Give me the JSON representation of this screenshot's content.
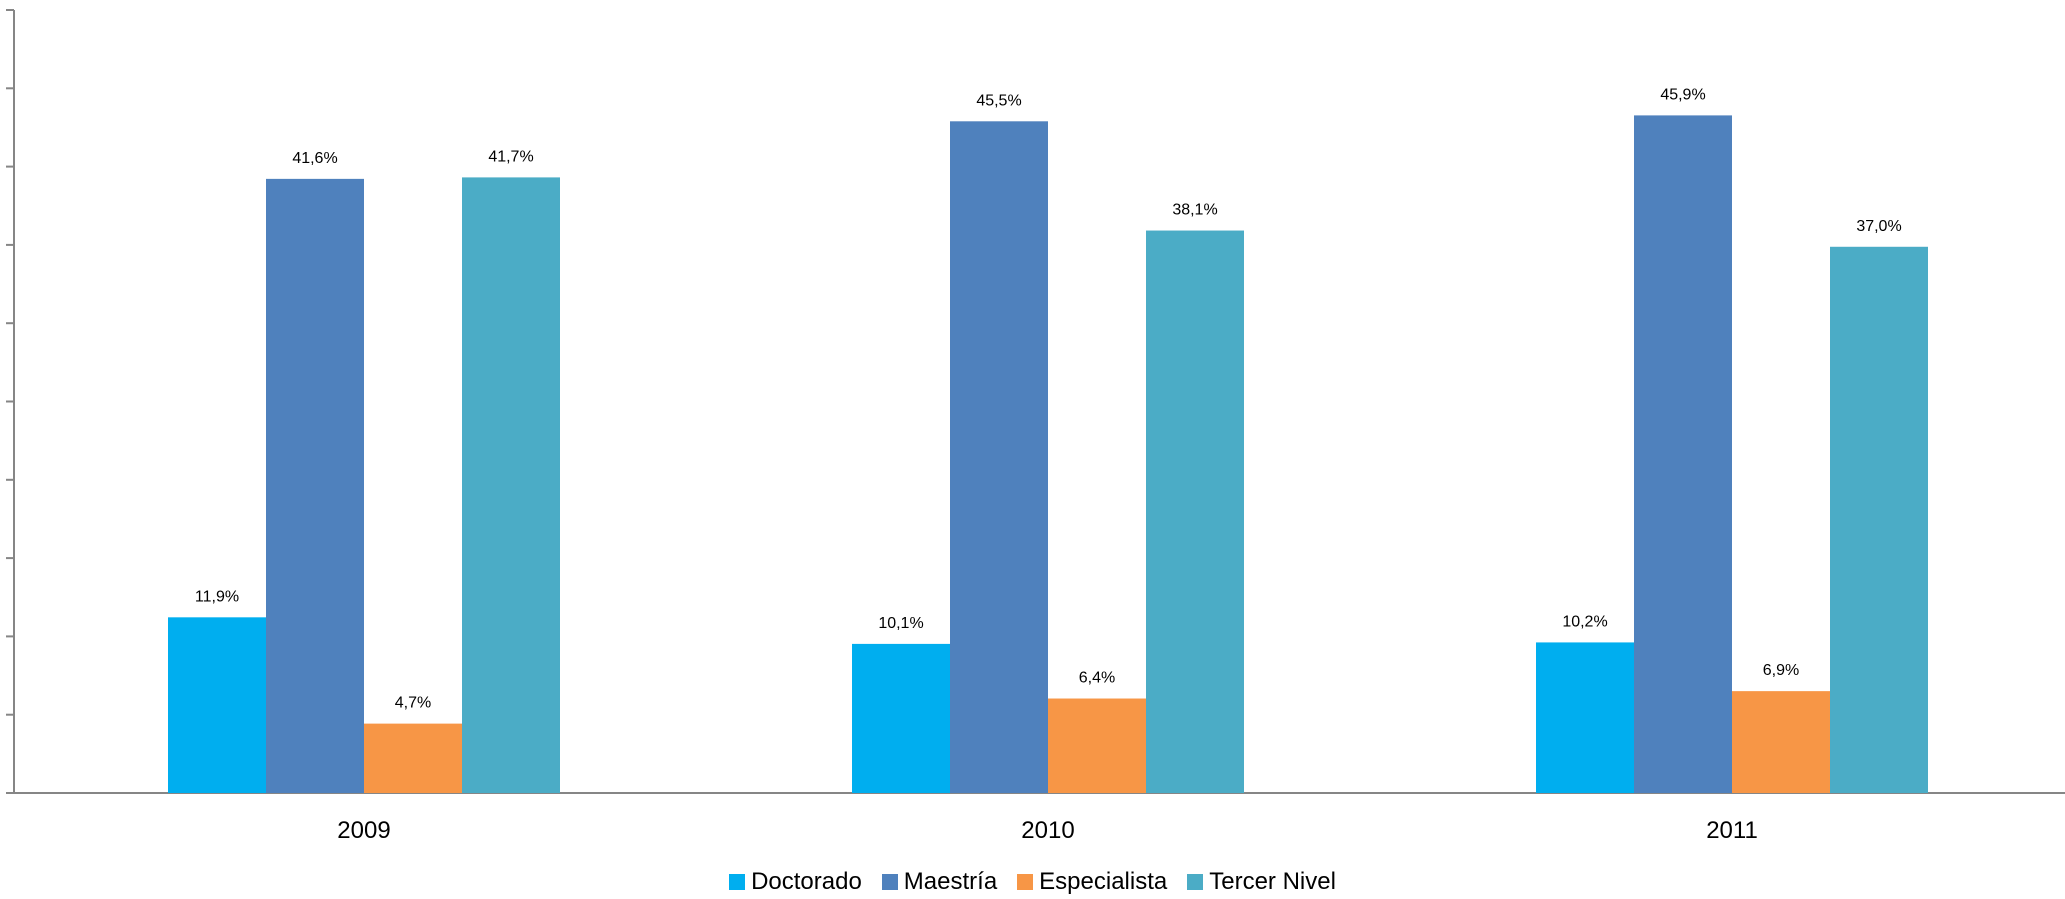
{
  "chart_data": {
    "type": "bar",
    "categories": [
      "2009",
      "2010",
      "2011"
    ],
    "series": [
      {
        "name": "Doctorado",
        "color": "#00AEEF",
        "values": [
          11.9,
          10.1,
          10.2
        ],
        "labels": [
          "11,9%",
          "10,1%",
          "10,2%"
        ]
      },
      {
        "name": "Maestría",
        "color": "#4F81BD",
        "values": [
          41.6,
          45.5,
          45.9
        ],
        "labels": [
          "41,6%",
          "45,5%",
          "45,9%"
        ]
      },
      {
        "name": "Especialista",
        "color": "#F79646",
        "values": [
          4.7,
          6.4,
          6.9
        ],
        "labels": [
          "4,7%",
          "6,4%",
          "6,9%"
        ]
      },
      {
        "name": "Tercer Nivel",
        "color": "#4BACC6",
        "values": [
          41.7,
          38.1,
          37.0
        ],
        "labels": [
          "41,7%",
          "38,1%",
          "37,0%"
        ]
      }
    ],
    "title": "",
    "xlabel": "",
    "ylabel": "",
    "ylim": [
      0,
      50
    ],
    "grid": false,
    "legend_position": "bottom"
  }
}
